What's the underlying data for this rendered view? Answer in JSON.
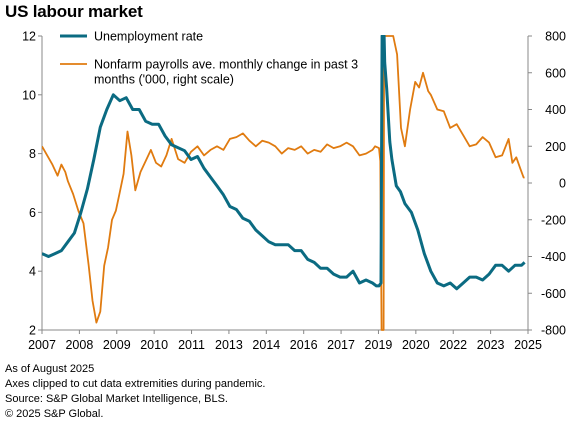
{
  "title": "US labour market",
  "footnotes": [
    "As of August 2025",
    "Axes clipped to cut data extremities during pandemic.",
    "Source: S&P Global Market Intelligence, BLS.",
    "© 2025 S&P Global."
  ],
  "chart_data": {
    "type": "line",
    "x_axis": {
      "type": "date",
      "range": [
        2007.0,
        2025.75
      ],
      "ticks": [
        "2007",
        "2008",
        "2009",
        "2010",
        "2011",
        "2013",
        "2014",
        "2016",
        "2017",
        "2019",
        "2020",
        "2022",
        "2023",
        "2025"
      ]
    },
    "y_left": {
      "range": [
        2,
        12
      ],
      "ticks": [
        2,
        4,
        6,
        8,
        10,
        12
      ]
    },
    "y_right": {
      "range": [
        -800,
        800
      ],
      "ticks": [
        -800,
        -600,
        -400,
        -200,
        0,
        200,
        400,
        600,
        800
      ]
    },
    "grid": false,
    "legend_placement": "top-left",
    "series": [
      {
        "name": "Unemployment rate",
        "axis": "left",
        "color": "#0b6b82",
        "points": [
          [
            2007.0,
            4.6
          ],
          [
            2007.25,
            4.5
          ],
          [
            2007.5,
            4.6
          ],
          [
            2007.75,
            4.7
          ],
          [
            2008.0,
            5.0
          ],
          [
            2008.25,
            5.3
          ],
          [
            2008.5,
            6.0
          ],
          [
            2008.75,
            6.8
          ],
          [
            2009.0,
            7.8
          ],
          [
            2009.25,
            8.9
          ],
          [
            2009.5,
            9.5
          ],
          [
            2009.75,
            10.0
          ],
          [
            2010.0,
            9.8
          ],
          [
            2010.25,
            9.9
          ],
          [
            2010.5,
            9.5
          ],
          [
            2010.75,
            9.5
          ],
          [
            2011.0,
            9.1
          ],
          [
            2011.25,
            9.0
          ],
          [
            2011.5,
            9.0
          ],
          [
            2011.75,
            8.6
          ],
          [
            2012.0,
            8.3
          ],
          [
            2012.25,
            8.2
          ],
          [
            2012.5,
            8.1
          ],
          [
            2012.75,
            7.8
          ],
          [
            2013.0,
            7.9
          ],
          [
            2013.25,
            7.5
          ],
          [
            2013.5,
            7.2
          ],
          [
            2013.75,
            6.9
          ],
          [
            2014.0,
            6.6
          ],
          [
            2014.25,
            6.2
          ],
          [
            2014.5,
            6.1
          ],
          [
            2014.75,
            5.8
          ],
          [
            2015.0,
            5.7
          ],
          [
            2015.25,
            5.4
          ],
          [
            2015.5,
            5.2
          ],
          [
            2015.75,
            5.0
          ],
          [
            2016.0,
            4.9
          ],
          [
            2016.25,
            4.9
          ],
          [
            2016.5,
            4.9
          ],
          [
            2016.75,
            4.7
          ],
          [
            2017.0,
            4.7
          ],
          [
            2017.25,
            4.4
          ],
          [
            2017.5,
            4.3
          ],
          [
            2017.75,
            4.1
          ],
          [
            2018.0,
            4.1
          ],
          [
            2018.25,
            3.9
          ],
          [
            2018.5,
            3.8
          ],
          [
            2018.75,
            3.8
          ],
          [
            2019.0,
            4.0
          ],
          [
            2019.25,
            3.6
          ],
          [
            2019.5,
            3.7
          ],
          [
            2019.75,
            3.6
          ],
          [
            2019.9,
            3.5
          ],
          [
            2020.0,
            3.5
          ],
          [
            2020.08,
            3.6
          ],
          [
            2020.12,
            12.0
          ],
          [
            2020.2,
            12.0
          ],
          [
            2020.22,
            11.1
          ],
          [
            2020.3,
            10.2
          ],
          [
            2020.42,
            8.4
          ],
          [
            2020.5,
            7.8
          ],
          [
            2020.67,
            6.9
          ],
          [
            2020.83,
            6.7
          ],
          [
            2021.0,
            6.3
          ],
          [
            2021.25,
            6.0
          ],
          [
            2021.5,
            5.4
          ],
          [
            2021.75,
            4.6
          ],
          [
            2022.0,
            4.0
          ],
          [
            2022.25,
            3.6
          ],
          [
            2022.5,
            3.5
          ],
          [
            2022.75,
            3.6
          ],
          [
            2023.0,
            3.4
          ],
          [
            2023.25,
            3.6
          ],
          [
            2023.5,
            3.8
          ],
          [
            2023.75,
            3.8
          ],
          [
            2024.0,
            3.7
          ],
          [
            2024.25,
            3.9
          ],
          [
            2024.5,
            4.2
          ],
          [
            2024.75,
            4.2
          ],
          [
            2025.0,
            4.0
          ],
          [
            2025.25,
            4.2
          ],
          [
            2025.5,
            4.2
          ],
          [
            2025.62,
            4.3
          ]
        ]
      },
      {
        "name": "Nonfarm payrolls ave. monthly change in past 3 months ('000, right scale)",
        "axis": "right",
        "color": "#e07b10",
        "points": [
          [
            2007.0,
            200
          ],
          [
            2007.2,
            150
          ],
          [
            2007.4,
            100
          ],
          [
            2007.6,
            40
          ],
          [
            2007.75,
            100
          ],
          [
            2007.9,
            60
          ],
          [
            2008.0,
            10
          ],
          [
            2008.2,
            -60
          ],
          [
            2008.4,
            -150
          ],
          [
            2008.6,
            -220
          ],
          [
            2008.8,
            -450
          ],
          [
            2008.95,
            -640
          ],
          [
            2009.1,
            -760
          ],
          [
            2009.25,
            -700
          ],
          [
            2009.4,
            -450
          ],
          [
            2009.55,
            -350
          ],
          [
            2009.7,
            -200
          ],
          [
            2009.85,
            -150
          ],
          [
            2010.0,
            -50
          ],
          [
            2010.15,
            50
          ],
          [
            2010.3,
            280
          ],
          [
            2010.45,
            150
          ],
          [
            2010.6,
            -40
          ],
          [
            2010.8,
            60
          ],
          [
            2011.0,
            120
          ],
          [
            2011.2,
            180
          ],
          [
            2011.4,
            110
          ],
          [
            2011.6,
            90
          ],
          [
            2011.8,
            150
          ],
          [
            2012.0,
            240
          ],
          [
            2012.25,
            130
          ],
          [
            2012.5,
            110
          ],
          [
            2012.75,
            170
          ],
          [
            2013.0,
            200
          ],
          [
            2013.25,
            150
          ],
          [
            2013.5,
            180
          ],
          [
            2013.75,
            200
          ],
          [
            2014.0,
            180
          ],
          [
            2014.25,
            240
          ],
          [
            2014.5,
            250
          ],
          [
            2014.75,
            270
          ],
          [
            2015.0,
            230
          ],
          [
            2015.25,
            200
          ],
          [
            2015.5,
            230
          ],
          [
            2015.75,
            220
          ],
          [
            2016.0,
            200
          ],
          [
            2016.25,
            160
          ],
          [
            2016.5,
            190
          ],
          [
            2016.75,
            180
          ],
          [
            2017.0,
            200
          ],
          [
            2017.25,
            160
          ],
          [
            2017.5,
            180
          ],
          [
            2017.75,
            170
          ],
          [
            2018.0,
            210
          ],
          [
            2018.25,
            190
          ],
          [
            2018.5,
            200
          ],
          [
            2018.75,
            220
          ],
          [
            2019.0,
            200
          ],
          [
            2019.25,
            150
          ],
          [
            2019.5,
            160
          ],
          [
            2019.75,
            180
          ],
          [
            2019.85,
            200
          ],
          [
            2020.0,
            190
          ],
          [
            2020.05,
            120
          ],
          [
            2020.1,
            -800
          ],
          [
            2020.18,
            -800
          ],
          [
            2020.2,
            800
          ],
          [
            2020.35,
            800
          ],
          [
            2020.45,
            800
          ],
          [
            2020.55,
            800
          ],
          [
            2020.7,
            700
          ],
          [
            2020.85,
            300
          ],
          [
            2021.0,
            200
          ],
          [
            2021.2,
            400
          ],
          [
            2021.4,
            550
          ],
          [
            2021.55,
            520
          ],
          [
            2021.7,
            600
          ],
          [
            2021.9,
            500
          ],
          [
            2022.0,
            480
          ],
          [
            2022.25,
            400
          ],
          [
            2022.5,
            390
          ],
          [
            2022.75,
            300
          ],
          [
            2023.0,
            320
          ],
          [
            2023.25,
            260
          ],
          [
            2023.5,
            200
          ],
          [
            2023.75,
            210
          ],
          [
            2024.0,
            250
          ],
          [
            2024.25,
            220
          ],
          [
            2024.5,
            140
          ],
          [
            2024.75,
            150
          ],
          [
            2025.0,
            240
          ],
          [
            2025.15,
            110
          ],
          [
            2025.3,
            140
          ],
          [
            2025.45,
            80
          ],
          [
            2025.58,
            30
          ],
          [
            2025.62,
            30
          ]
        ]
      }
    ]
  }
}
